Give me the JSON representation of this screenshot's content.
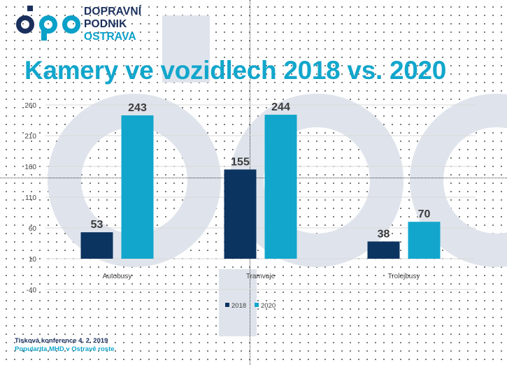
{
  "brand": {
    "name_line1": "DOPRAVNÍ",
    "name_line2": "PODNIK",
    "name_line3": "OSTRAVA",
    "logo_color": "#1a2f5c",
    "accent_color": "#0aa0c8"
  },
  "slide": {
    "title": "Kamery ve vozidlech 2018 vs. 2020",
    "footer_line1": "Tisková konference 4. 2. 2019",
    "footer_line2": "Popularita MHD v Ostravě roste"
  },
  "chart_data": {
    "type": "bar",
    "categories": [
      "Autobusy",
      "Tramvaje",
      "Trolejbusy"
    ],
    "series": [
      {
        "name": "2018",
        "values": [
          53,
          155,
          38
        ],
        "color": "#0c3460"
      },
      {
        "name": "2020",
        "values": [
          243,
          244,
          70
        ],
        "color": "#12a6cc"
      }
    ],
    "yticks": [
      260,
      210,
      160,
      110,
      60,
      10,
      -40
    ],
    "ylim": [
      -40,
      260
    ],
    "grid": true,
    "legend": "bottom",
    "data_labels": true
  }
}
